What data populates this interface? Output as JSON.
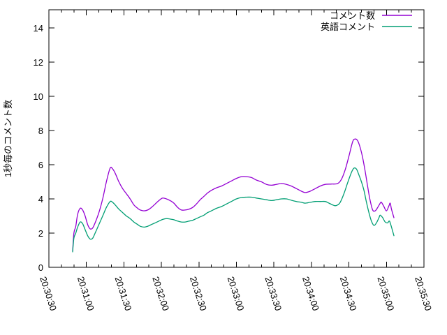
{
  "chart_data": {
    "type": "line",
    "title": "",
    "xlabel": "",
    "ylabel": "1秒毎のコメント数",
    "x_start_label": "20:30:30",
    "x_tick_labels": [
      "20:30:30",
      "20:31:00",
      "20:31:30",
      "20:32:00",
      "20:32:30",
      "20:33:00",
      "20:33:30",
      "20:34:00",
      "20:34:30",
      "20:35:00",
      "20:35:30"
    ],
    "x_tick_seconds": [
      0,
      30,
      60,
      90,
      120,
      150,
      180,
      210,
      240,
      270,
      300
    ],
    "x_minor_step_sec": 10,
    "xlim_sec": [
      0,
      300
    ],
    "y_ticks": [
      0,
      2,
      4,
      6,
      8,
      10,
      12,
      14
    ],
    "ylim": [
      0,
      15.06
    ],
    "grid": false,
    "legend_position": "top-right-inside",
    "axis_color": "#000000",
    "background_color": "#ffffff",
    "series": [
      {
        "name": "コメント数",
        "color": "#9400d3",
        "points": [
          [
            19,
            0.95
          ],
          [
            20,
            2.0
          ],
          [
            21.5,
            2.4
          ],
          [
            23,
            3.1
          ],
          [
            25,
            3.45
          ],
          [
            27,
            3.35
          ],
          [
            29,
            3.0
          ],
          [
            31,
            2.5
          ],
          [
            33,
            2.25
          ],
          [
            35,
            2.3
          ],
          [
            37,
            2.6
          ],
          [
            40,
            3.2
          ],
          [
            43,
            4.0
          ],
          [
            46,
            5.0
          ],
          [
            49,
            5.8
          ],
          [
            51,
            5.75
          ],
          [
            53,
            5.5
          ],
          [
            56,
            5.0
          ],
          [
            59,
            4.6
          ],
          [
            62,
            4.3
          ],
          [
            65,
            4.0
          ],
          [
            68,
            3.65
          ],
          [
            71,
            3.45
          ],
          [
            73,
            3.35
          ],
          [
            76,
            3.3
          ],
          [
            79,
            3.35
          ],
          [
            82,
            3.5
          ],
          [
            85,
            3.7
          ],
          [
            88,
            3.9
          ],
          [
            91,
            4.05
          ],
          [
            94,
            4.0
          ],
          [
            97,
            3.9
          ],
          [
            100,
            3.75
          ],
          [
            103,
            3.5
          ],
          [
            106,
            3.35
          ],
          [
            109,
            3.35
          ],
          [
            112,
            3.4
          ],
          [
            115,
            3.5
          ],
          [
            118,
            3.7
          ],
          [
            121,
            3.95
          ],
          [
            124,
            4.15
          ],
          [
            127,
            4.35
          ],
          [
            130,
            4.5
          ],
          [
            134,
            4.65
          ],
          [
            138,
            4.75
          ],
          [
            142,
            4.9
          ],
          [
            146,
            5.05
          ],
          [
            150,
            5.2
          ],
          [
            154,
            5.3
          ],
          [
            158,
            5.3
          ],
          [
            162,
            5.25
          ],
          [
            166,
            5.1
          ],
          [
            170,
            5.0
          ],
          [
            174,
            4.85
          ],
          [
            178,
            4.8
          ],
          [
            182,
            4.85
          ],
          [
            186,
            4.9
          ],
          [
            190,
            4.85
          ],
          [
            194,
            4.75
          ],
          [
            198,
            4.6
          ],
          [
            202,
            4.45
          ],
          [
            205,
            4.37
          ],
          [
            209,
            4.45
          ],
          [
            213,
            4.6
          ],
          [
            217,
            4.75
          ],
          [
            221,
            4.85
          ],
          [
            226,
            4.87
          ],
          [
            231,
            4.9
          ],
          [
            234,
            5.15
          ],
          [
            237,
            5.7
          ],
          [
            240,
            6.5
          ],
          [
            243,
            7.35
          ],
          [
            245,
            7.5
          ],
          [
            247,
            7.4
          ],
          [
            249,
            7.0
          ],
          [
            251,
            6.4
          ],
          [
            253,
            5.6
          ],
          [
            255,
            4.7
          ],
          [
            257,
            3.9
          ],
          [
            259,
            3.35
          ],
          [
            261,
            3.3
          ],
          [
            263,
            3.5
          ],
          [
            265,
            3.75
          ],
          [
            266,
            3.8
          ],
          [
            268,
            3.55
          ],
          [
            270,
            3.3
          ],
          [
            272,
            3.6
          ],
          [
            273,
            3.75
          ],
          [
            274,
            3.4
          ],
          [
            276,
            2.9
          ]
        ]
      },
      {
        "name": "英語コメント",
        "color": "#009e73",
        "points": [
          [
            19,
            0.9
          ],
          [
            20,
            1.7
          ],
          [
            21.5,
            2.0
          ],
          [
            23,
            2.35
          ],
          [
            25,
            2.65
          ],
          [
            27,
            2.55
          ],
          [
            29,
            2.2
          ],
          [
            31,
            1.85
          ],
          [
            33,
            1.65
          ],
          [
            35,
            1.7
          ],
          [
            37,
            2.0
          ],
          [
            40,
            2.5
          ],
          [
            43,
            3.0
          ],
          [
            46,
            3.5
          ],
          [
            49,
            3.85
          ],
          [
            51,
            3.8
          ],
          [
            53,
            3.65
          ],
          [
            56,
            3.4
          ],
          [
            59,
            3.2
          ],
          [
            62,
            3.0
          ],
          [
            65,
            2.85
          ],
          [
            68,
            2.65
          ],
          [
            71,
            2.5
          ],
          [
            73,
            2.4
          ],
          [
            76,
            2.35
          ],
          [
            79,
            2.4
          ],
          [
            82,
            2.5
          ],
          [
            85,
            2.6
          ],
          [
            88,
            2.7
          ],
          [
            91,
            2.8
          ],
          [
            94,
            2.85
          ],
          [
            97,
            2.82
          ],
          [
            100,
            2.78
          ],
          [
            103,
            2.7
          ],
          [
            106,
            2.65
          ],
          [
            109,
            2.65
          ],
          [
            112,
            2.7
          ],
          [
            115,
            2.75
          ],
          [
            118,
            2.85
          ],
          [
            121,
            2.95
          ],
          [
            124,
            3.05
          ],
          [
            127,
            3.2
          ],
          [
            130,
            3.3
          ],
          [
            134,
            3.45
          ],
          [
            138,
            3.55
          ],
          [
            142,
            3.7
          ],
          [
            146,
            3.85
          ],
          [
            150,
            4.0
          ],
          [
            154,
            4.08
          ],
          [
            158,
            4.1
          ],
          [
            162,
            4.1
          ],
          [
            166,
            4.05
          ],
          [
            170,
            4.0
          ],
          [
            174,
            3.95
          ],
          [
            178,
            3.9
          ],
          [
            182,
            3.95
          ],
          [
            186,
            4.0
          ],
          [
            190,
            4.0
          ],
          [
            194,
            3.92
          ],
          [
            198,
            3.85
          ],
          [
            202,
            3.8
          ],
          [
            205,
            3.75
          ],
          [
            209,
            3.8
          ],
          [
            213,
            3.85
          ],
          [
            217,
            3.85
          ],
          [
            221,
            3.85
          ],
          [
            224,
            3.75
          ],
          [
            227,
            3.65
          ],
          [
            229,
            3.6
          ],
          [
            231,
            3.65
          ],
          [
            233,
            3.8
          ],
          [
            236,
            4.3
          ],
          [
            239,
            4.95
          ],
          [
            242,
            5.55
          ],
          [
            244,
            5.8
          ],
          [
            246,
            5.75
          ],
          [
            248,
            5.4
          ],
          [
            250,
            5.0
          ],
          [
            252,
            4.5
          ],
          [
            254,
            3.8
          ],
          [
            256,
            3.2
          ],
          [
            258,
            2.7
          ],
          [
            260,
            2.45
          ],
          [
            262,
            2.6
          ],
          [
            264,
            2.9
          ],
          [
            265,
            3.05
          ],
          [
            267,
            2.9
          ],
          [
            269,
            2.65
          ],
          [
            271,
            2.6
          ],
          [
            272,
            2.7
          ],
          [
            273,
            2.6
          ],
          [
            276,
            1.85
          ]
        ]
      }
    ]
  }
}
